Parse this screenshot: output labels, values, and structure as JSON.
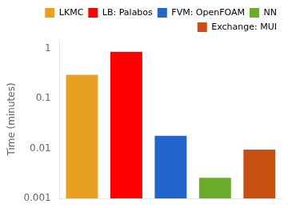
{
  "chart_data": {
    "type": "bar",
    "categories": [
      "LKMC",
      "LB: Palabos",
      "FVM: OpenFOAM",
      "NN",
      "Exchange: MUI"
    ],
    "values": [
      0.3,
      0.87,
      0.018,
      0.0026,
      0.0095
    ],
    "colors": [
      "#E8A020",
      "#FF0000",
      "#2266CC",
      "#6AAD2A",
      "#C85010"
    ],
    "ylabel": "Time (minutes)",
    "ylim": [
      0.001,
      1.5
    ],
    "yticks": [
      0.001,
      0.01,
      0.1,
      1
    ],
    "log": "y",
    "grid": false,
    "legend": "upper right",
    "tick_labels": "y"
  }
}
